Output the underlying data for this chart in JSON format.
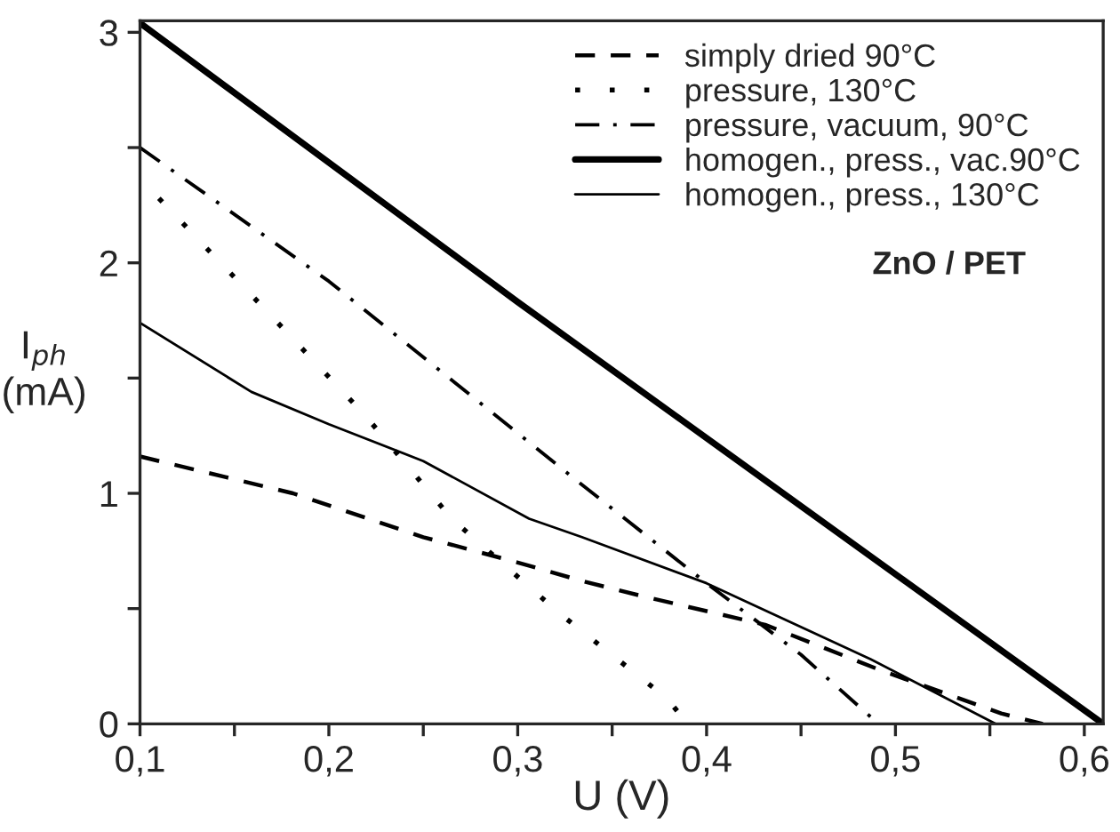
{
  "chart_data": {
    "type": "line",
    "xlabel": "U (V)",
    "ylabel": "I$_{ph}$\n(mA)",
    "xlim": [
      0.1,
      0.61
    ],
    "ylim": [
      0,
      3.05
    ],
    "xticks": [
      {
        "value": 0.1,
        "label": "0,1"
      },
      {
        "value": 0.15,
        "label": null
      },
      {
        "value": 0.2,
        "label": "0,2"
      },
      {
        "value": 0.25,
        "label": null
      },
      {
        "value": 0.3,
        "label": "0,3"
      },
      {
        "value": 0.35,
        "label": null
      },
      {
        "value": 0.4,
        "label": "0,4"
      },
      {
        "value": 0.45,
        "label": null
      },
      {
        "value": 0.5,
        "label": "0,5"
      },
      {
        "value": 0.55,
        "label": null
      },
      {
        "value": 0.6,
        "label": "0,6"
      }
    ],
    "yticks": [
      0,
      {
        "value": 0.5,
        "label": null
      },
      1,
      {
        "value": 1.5,
        "label": null
      },
      2,
      {
        "value": 2.5,
        "label": null
      },
      3
    ],
    "legend": "top right",
    "grid": false,
    "marker": "none",
    "annotations": [
      "ZnO / PET"
    ],
    "series": [
      {
        "name": "simply dried 90°C",
        "color": "#000000",
        "line_style": "dashed",
        "x": [
          0.1,
          0.181,
          0.25,
          0.3,
          0.334,
          0.368,
          0.431,
          0.493,
          0.556,
          0.578
        ],
        "values": [
          1.16,
          1.0,
          0.81,
          0.7,
          0.62,
          0.55,
          0.43,
          0.23,
          0.045,
          0
        ]
      },
      {
        "name": "pressure, 130°C",
        "color": "#000000",
        "line_style": "dotted",
        "x": [
          0.11,
          0.166,
          0.219,
          0.265,
          0.322,
          0.379,
          0.39
        ],
        "values": [
          2.28,
          1.8,
          1.34,
          0.89,
          0.48,
          0.11,
          0
        ]
      },
      {
        "name": "pressure, vacuum, 90°C",
        "color": "#000000",
        "line_style": "dashdot",
        "x": [
          0.1,
          0.2,
          0.329,
          0.4,
          0.45,
          0.491
        ],
        "values": [
          2.5,
          1.92,
          1.07,
          0.61,
          0.3,
          0
        ]
      },
      {
        "name": "homogen., press., vac.90°C",
        "color": "#000000",
        "line_style": "solid",
        "x": [
          0.1,
          0.3,
          0.61
        ],
        "values": [
          3.04,
          1.83,
          0
        ]
      },
      {
        "name": "homogen., press., 130°C",
        "color": "#000000",
        "line_style": "solid",
        "x": [
          0.1,
          0.159,
          0.2,
          0.25,
          0.306,
          0.334,
          0.4,
          0.487,
          0.553
        ],
        "values": [
          1.74,
          1.44,
          1.3,
          1.14,
          0.89,
          0.81,
          0.61,
          0.28,
          0
        ]
      }
    ]
  }
}
